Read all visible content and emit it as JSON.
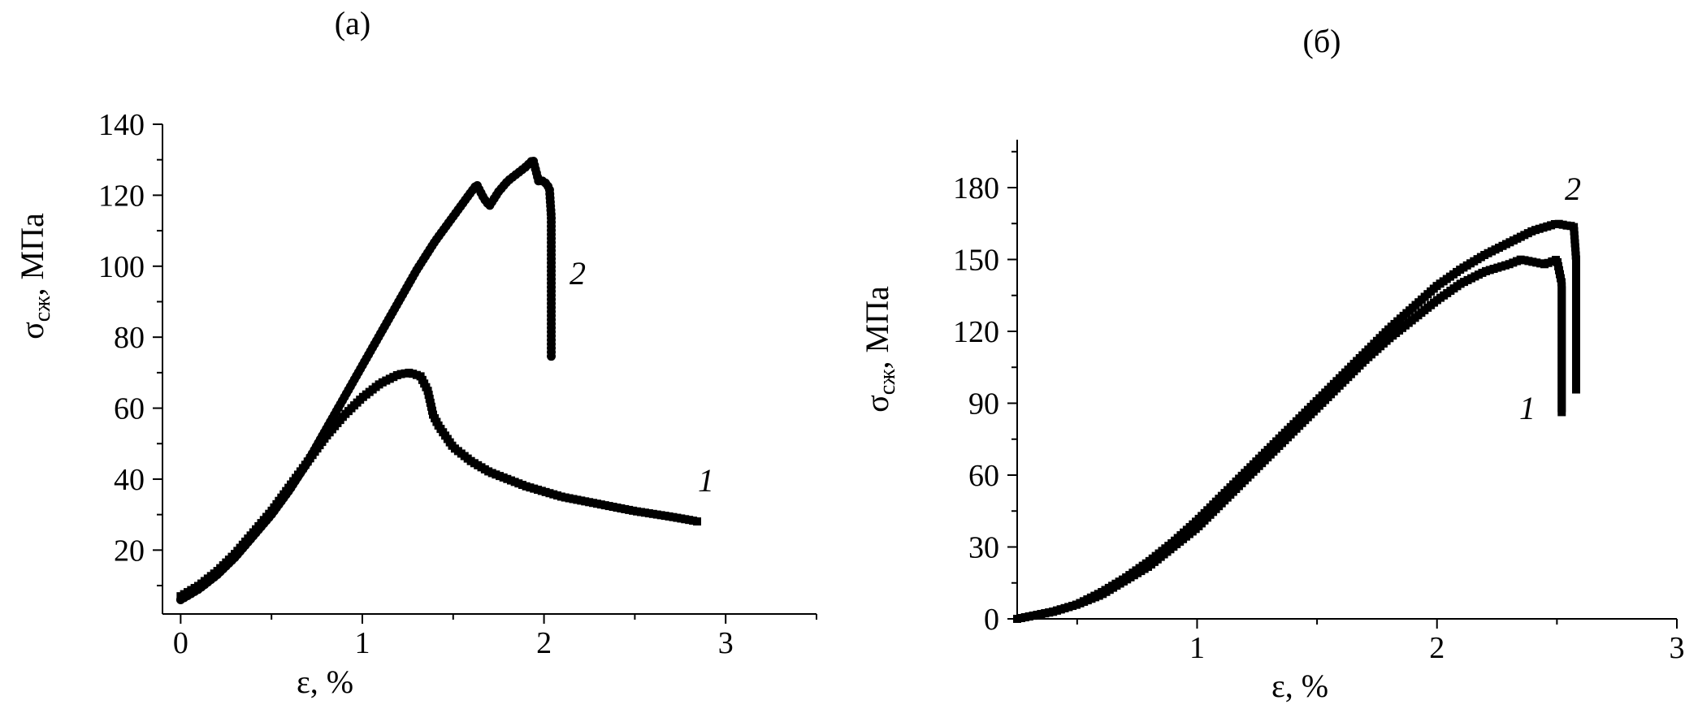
{
  "chart_data": [
    {
      "type": "scatter",
      "title": "(a)",
      "xlabel": "ε, %",
      "ylabel_main": "σ",
      "ylabel_sub": "сж",
      "ylabel_suffix": ", МПа",
      "xlim": [
        -0.1,
        3.5
      ],
      "ylim": [
        2,
        140
      ],
      "xticks": [
        0,
        1,
        2,
        3
      ],
      "yticks": [
        20,
        40,
        60,
        80,
        100,
        120,
        140
      ],
      "grid": false,
      "series": [
        {
          "name": "1",
          "marker": "square",
          "x": [
            0,
            0.1,
            0.2,
            0.3,
            0.4,
            0.5,
            0.6,
            0.7,
            0.8,
            0.9,
            1.0,
            1.1,
            1.2,
            1.26,
            1.32,
            1.36,
            1.39,
            1.42,
            1.5,
            1.6,
            1.7,
            1.8,
            1.9,
            2.0,
            2.1,
            2.2,
            2.3,
            2.4,
            2.5,
            2.6,
            2.7,
            2.8,
            2.85
          ],
          "y": [
            7,
            10,
            14,
            19,
            25,
            31,
            38,
            45,
            52,
            58,
            63,
            67,
            69.5,
            70,
            69,
            65,
            58,
            55,
            49,
            45,
            42,
            40,
            38,
            36.5,
            35,
            34,
            33,
            32,
            31,
            30.2,
            29.4,
            28.5,
            28
          ]
        },
        {
          "name": "2",
          "marker": "circle",
          "x": [
            0,
            0.1,
            0.2,
            0.3,
            0.4,
            0.5,
            0.6,
            0.7,
            0.8,
            0.9,
            1.0,
            1.1,
            1.2,
            1.3,
            1.4,
            1.5,
            1.6,
            1.63,
            1.67,
            1.7,
            1.75,
            1.8,
            1.85,
            1.9,
            1.94,
            1.97,
            2.0,
            2.03,
            2.04,
            2.04,
            2.04,
            2.04,
            2.04,
            2.04,
            2.04
          ],
          "y": [
            6,
            9,
            13,
            18,
            24,
            30,
            37,
            45,
            54,
            63,
            72,
            81,
            90,
            99,
            107,
            114,
            121,
            123,
            119,
            117,
            121,
            124,
            126,
            128,
            130,
            124,
            124,
            122,
            114,
            106,
            98,
            90,
            82,
            78,
            74
          ]
        }
      ],
      "curve_labels": [
        "1",
        "2"
      ]
    },
    {
      "type": "scatter",
      "title": "(б)",
      "xlabel": "ε, %",
      "ylabel_main": "σ",
      "ylabel_sub": "сж",
      "ylabel_suffix": ", МПа",
      "xlim": [
        0.25,
        3
      ],
      "ylim": [
        0,
        200
      ],
      "xticks": [
        1,
        2,
        3
      ],
      "yticks": [
        0,
        30,
        60,
        90,
        120,
        150,
        180
      ],
      "grid": false,
      "series": [
        {
          "name": "1",
          "marker": "square",
          "x": [
            0.25,
            0.4,
            0.5,
            0.6,
            0.7,
            0.8,
            0.9,
            1.0,
            1.1,
            1.2,
            1.3,
            1.4,
            1.5,
            1.6,
            1.7,
            1.8,
            1.9,
            2.0,
            2.1,
            2.2,
            2.3,
            2.35,
            2.4,
            2.45,
            2.5,
            2.52,
            2.52,
            2.52,
            2.52,
            2.52
          ],
          "y": [
            0,
            3,
            6,
            10,
            16,
            22,
            30,
            38,
            48,
            58,
            68,
            78,
            88,
            98,
            108,
            117,
            125,
            133,
            140,
            145,
            148,
            150,
            149,
            148,
            150,
            140,
            125,
            110,
            95,
            86
          ]
        },
        {
          "name": "2",
          "marker": "square",
          "x": [
            0.25,
            0.4,
            0.5,
            0.6,
            0.7,
            0.8,
            0.9,
            1.0,
            1.1,
            1.2,
            1.3,
            1.4,
            1.5,
            1.6,
            1.7,
            1.8,
            1.9,
            2.0,
            2.1,
            2.2,
            2.3,
            2.4,
            2.5,
            2.55,
            2.57,
            2.58,
            2.58,
            2.58,
            2.58,
            2.58
          ],
          "y": [
            0,
            3,
            6,
            11,
            17,
            24,
            32,
            41,
            51,
            61,
            71,
            81,
            91,
            101,
            111,
            121,
            130,
            139,
            146,
            152,
            157,
            162,
            165,
            164,
            164,
            150,
            135,
            120,
            105,
            95
          ]
        }
      ],
      "curve_labels": [
        "1",
        "2"
      ]
    }
  ]
}
